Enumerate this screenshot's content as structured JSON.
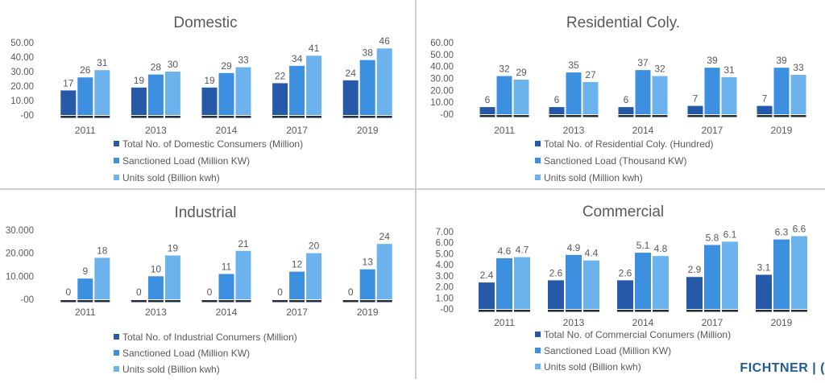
{
  "colors": {
    "series": [
      "#2659a8",
      "#3d8fe0",
      "#6cb3ee"
    ],
    "axis_text": "#595959",
    "title_text": "#595959"
  },
  "brand": {
    "text": "FICHTNER | ("
  },
  "chart_data": [
    {
      "type": "bar",
      "title": "Domestic",
      "categories": [
        "2011",
        "2013",
        "2014",
        "2017",
        "2019"
      ],
      "yticks": [
        "-00",
        "10.00",
        "20.00",
        "30.00",
        "40.00",
        "50.00"
      ],
      "ylim": [
        0,
        50
      ],
      "grid": false,
      "legend_position": "bottom",
      "series": [
        {
          "name": "Total No. of Domestic Consumers (Million)",
          "values": [
            17,
            19,
            19,
            22,
            24
          ],
          "labels": [
            "17",
            "19",
            "19",
            "22",
            "24"
          ]
        },
        {
          "name": "Sanctioned Load (Million KW)",
          "values": [
            26,
            28,
            29,
            34,
            38
          ],
          "labels": [
            "26",
            "28",
            "29",
            "34",
            "38"
          ]
        },
        {
          "name": "Units sold (Billion kwh)",
          "values": [
            31,
            30,
            33,
            41,
            46
          ],
          "labels": [
            "31",
            "30",
            "33",
            "41",
            "46"
          ]
        }
      ]
    },
    {
      "type": "bar",
      "title": "Residential Coly.",
      "categories": [
        "2011",
        "2013",
        "2014",
        "2017",
        "2019"
      ],
      "yticks": [
        "-00",
        "10.00",
        "20.00",
        "30.00",
        "40.00",
        "50.00",
        "60.00"
      ],
      "ylim": [
        0,
        60
      ],
      "grid": false,
      "legend_position": "bottom",
      "series": [
        {
          "name": "Total No. of Residential Coly. (Hundred)",
          "values": [
            6,
            6,
            6,
            7,
            7
          ],
          "labels": [
            "6",
            "6",
            "6",
            "7",
            "7"
          ]
        },
        {
          "name": "Sanctioned Load (Thousand KW)",
          "values": [
            32,
            35,
            37,
            39,
            39
          ],
          "labels": [
            "32",
            "35",
            "37",
            "39",
            "39"
          ]
        },
        {
          "name": "Units sold (Million kwh)",
          "values": [
            29,
            27,
            32,
            31,
            33
          ],
          "labels": [
            "29",
            "27",
            "32",
            "31",
            "33"
          ]
        }
      ]
    },
    {
      "type": "bar",
      "title": "Industrial",
      "categories": [
        "2011",
        "2013",
        "2014",
        "2017",
        "2019"
      ],
      "yticks": [
        "-00",
        "10.000",
        "20.000",
        "30.000"
      ],
      "ylim": [
        0,
        30
      ],
      "grid": false,
      "legend_position": "bottom",
      "series": [
        {
          "name": "Total No. of Industrial Conumers (Million)",
          "values": [
            0,
            0,
            0,
            0,
            0
          ],
          "labels": [
            "0",
            "0",
            "0",
            "0",
            "0"
          ]
        },
        {
          "name": "Sanctioned Load (Million KW)",
          "values": [
            9,
            10,
            11,
            12,
            13
          ],
          "labels": [
            "9",
            "10",
            "11",
            "12",
            "13"
          ]
        },
        {
          "name": "Units sold (Billion kwh)",
          "values": [
            18,
            19,
            21,
            20,
            24
          ],
          "labels": [
            "18",
            "19",
            "21",
            "20",
            "24"
          ]
        }
      ]
    },
    {
      "type": "bar",
      "title": "Commercial",
      "categories": [
        "2011",
        "2013",
        "2014",
        "2017",
        "2019"
      ],
      "yticks": [
        "-00",
        "1.00",
        "2.00",
        "3.00",
        "4.00",
        "5.00",
        "6.00",
        "7.00"
      ],
      "ylim": [
        0,
        7
      ],
      "grid": false,
      "legend_position": "bottom",
      "series": [
        {
          "name": "Total No. of Commercial Conumers (Million)",
          "values": [
            2.4,
            2.6,
            2.6,
            2.9,
            3.1
          ],
          "labels": [
            "2.4",
            "2.6",
            "2.6",
            "2.9",
            "3.1"
          ]
        },
        {
          "name": "Sanctioned Load (Million KW)",
          "values": [
            4.6,
            4.9,
            5.1,
            5.8,
            6.3
          ],
          "labels": [
            "4.6",
            "4.9",
            "5.1",
            "5.8",
            "6.3"
          ]
        },
        {
          "name": "Units sold (Billion kwh)",
          "values": [
            4.7,
            4.4,
            4.8,
            6.1,
            6.6
          ],
          "labels": [
            "4.7",
            "4.4",
            "4.8",
            "6.1",
            "6.6"
          ]
        }
      ]
    }
  ]
}
